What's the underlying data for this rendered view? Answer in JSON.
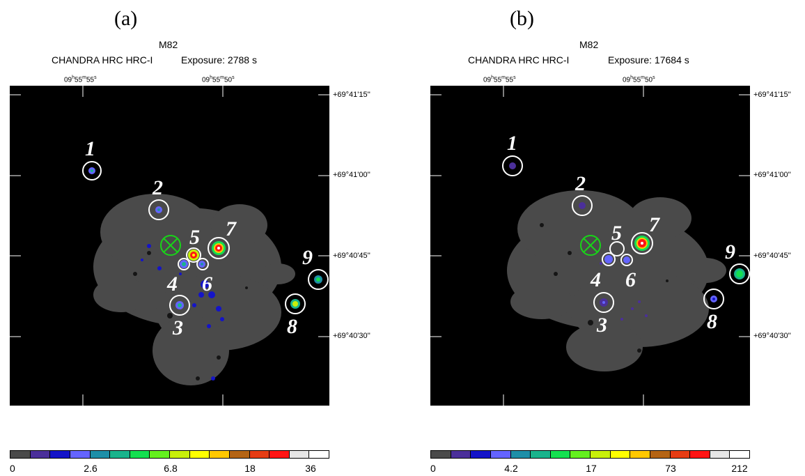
{
  "panels": [
    {
      "label": "(a)",
      "object": "M82",
      "instrument": "CHANDRA HRC HRC-I",
      "exposure": "Exposure: 2788 s",
      "ra_ticks": [
        "09h55m55s",
        "09h55m50s"
      ],
      "dec_ticks": [
        "+69°41'15''",
        "+69°41'00''",
        "+69°40'45''",
        "+69°40'30''"
      ],
      "sources": [
        "1",
        "2",
        "3",
        "4",
        "5",
        "6",
        "7",
        "8",
        "9"
      ],
      "colorbar_labels": [
        "0",
        "2.6",
        "6.8",
        "18",
        "36"
      ]
    },
    {
      "label": "(b)",
      "object": "M82",
      "instrument": "CHANDRA HRC HRC-I",
      "exposure": "Exposure: 17684 s",
      "ra_ticks": [
        "09h55m55s",
        "09h55m50s"
      ],
      "dec_ticks": [
        "+69°41'15''",
        "+69°41'00''",
        "+69°40'45''",
        "+69°40'30''"
      ],
      "sources": [
        "1",
        "2",
        "3",
        "4",
        "5",
        "6",
        "7",
        "8",
        "9"
      ],
      "colorbar_labels": [
        "0",
        "4.2",
        "17",
        "73",
        "212"
      ]
    }
  ],
  "colormap": [
    "#4a4a4a",
    "#4b2f9a",
    "#1414c8",
    "#6464ff",
    "#1e8fa8",
    "#19b48c",
    "#14e050",
    "#64f01e",
    "#c8f00a",
    "#ffff00",
    "#ffc800",
    "#b46414",
    "#e63c14",
    "#ff1414",
    "#e6e6e6",
    "#ffffff"
  ],
  "colors": {
    "background": "#000000",
    "diffuse": "#4a4a4a",
    "nucleus_marker": "#19d419",
    "circle": "#ffffff"
  }
}
